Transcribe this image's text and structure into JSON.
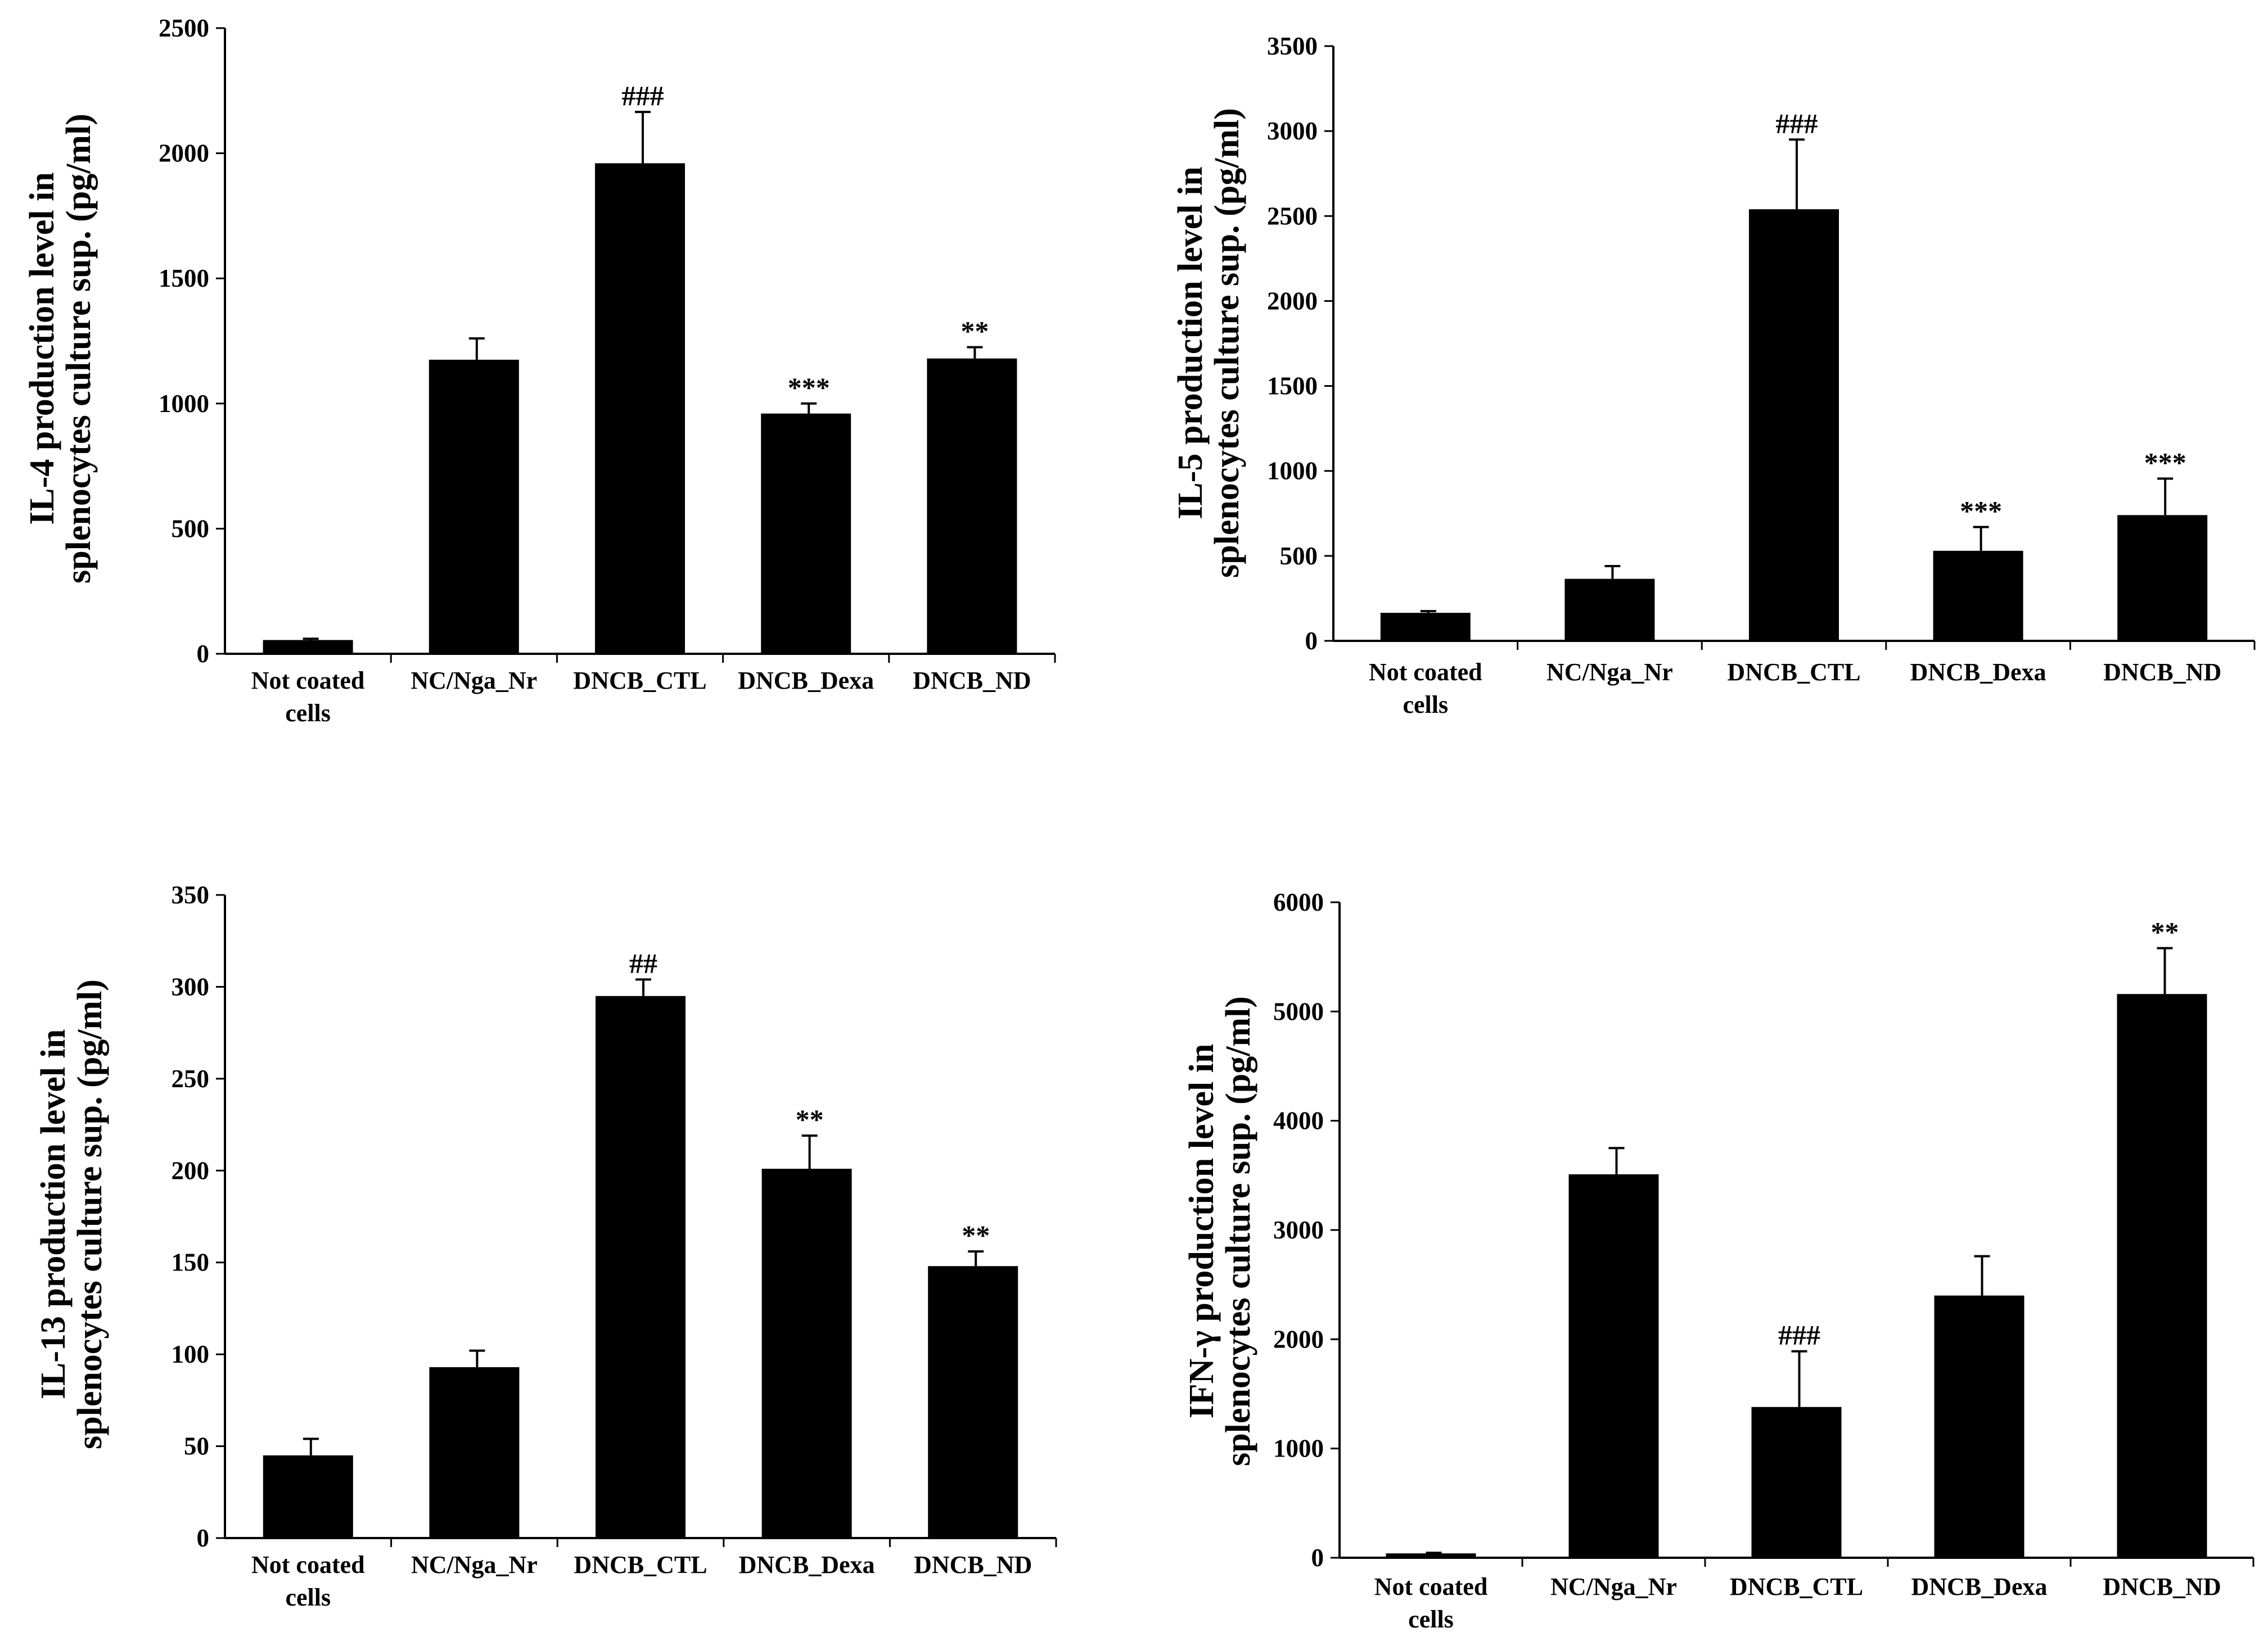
{
  "figure": {
    "ink_color": "#000000",
    "background": "#ffffff"
  },
  "chart_data": [
    {
      "type": "bar",
      "title": "",
      "ylabel_line1": "IL-4 production level in",
      "ylabel_line2": "splenocytes culture sup. (pg/ml)",
      "xlabel": "",
      "ylim": [
        0,
        2500
      ],
      "yticks": [
        0,
        500,
        1000,
        1500,
        2000,
        2500
      ],
      "categories": [
        [
          "Not coated",
          "cells"
        ],
        [
          "NC/Nga_Nr"
        ],
        [
          "DNCB_CTL"
        ],
        [
          "DNCB_Dexa"
        ],
        [
          "DNCB_ND"
        ]
      ],
      "values": [
        55,
        1175,
        1960,
        960,
        1180
      ],
      "errors": [
        5,
        85,
        205,
        40,
        45
      ],
      "annotations": [
        "",
        "",
        "###",
        "***",
        "**"
      ]
    },
    {
      "type": "bar",
      "title": "",
      "ylabel_line1": "IL-5 production level in",
      "ylabel_line2": "splenocytes culture sup. (pg/ml)",
      "xlabel": "",
      "ylim": [
        0,
        3500
      ],
      "yticks": [
        0,
        500,
        1000,
        1500,
        2000,
        2500,
        3000,
        3500
      ],
      "categories": [
        [
          "Not coated",
          "cells"
        ],
        [
          "NC/Nga_Nr"
        ],
        [
          "DNCB_CTL"
        ],
        [
          "DNCB_Dexa"
        ],
        [
          "DNCB_ND"
        ]
      ],
      "values": [
        165,
        365,
        2540,
        530,
        740
      ],
      "errors": [
        10,
        75,
        410,
        140,
        215
      ],
      "annotations": [
        "",
        "",
        "###",
        "***",
        "***"
      ]
    },
    {
      "type": "bar",
      "title": "",
      "ylabel_line1": "IL-13 production level in",
      "ylabel_line2": "splenocytes culture sup. (pg/ml)",
      "xlabel": "",
      "ylim": [
        0,
        350
      ],
      "yticks": [
        0,
        50,
        100,
        150,
        200,
        250,
        300,
        350
      ],
      "categories": [
        [
          "Not coated",
          "cells"
        ],
        [
          "NC/Nga_Nr"
        ],
        [
          "DNCB_CTL"
        ],
        [
          "DNCB_Dexa"
        ],
        [
          "DNCB_ND"
        ]
      ],
      "values": [
        45,
        93,
        295,
        201,
        148
      ],
      "errors": [
        9,
        9,
        9,
        18,
        8
      ],
      "annotations": [
        "",
        "",
        "##",
        "**",
        "**"
      ]
    },
    {
      "type": "bar",
      "title": "",
      "ylabel_line1": "IFN-γ production level in",
      "ylabel_line2": "splenocytes culture sup. (pg/ml)",
      "xlabel": "",
      "ylim": [
        0,
        6000
      ],
      "yticks": [
        0,
        1000,
        2000,
        3000,
        4000,
        5000,
        6000
      ],
      "categories": [
        [
          "Not coated",
          "cells"
        ],
        [
          "NC/Nga_Nr"
        ],
        [
          "DNCB_CTL"
        ],
        [
          "DNCB_Dexa"
        ],
        [
          "DNCB_ND"
        ]
      ],
      "values": [
        40,
        3510,
        1380,
        2400,
        5160
      ],
      "errors": [
        5,
        240,
        510,
        360,
        420
      ],
      "annotations": [
        "",
        "",
        "###",
        "",
        "**"
      ]
    }
  ]
}
